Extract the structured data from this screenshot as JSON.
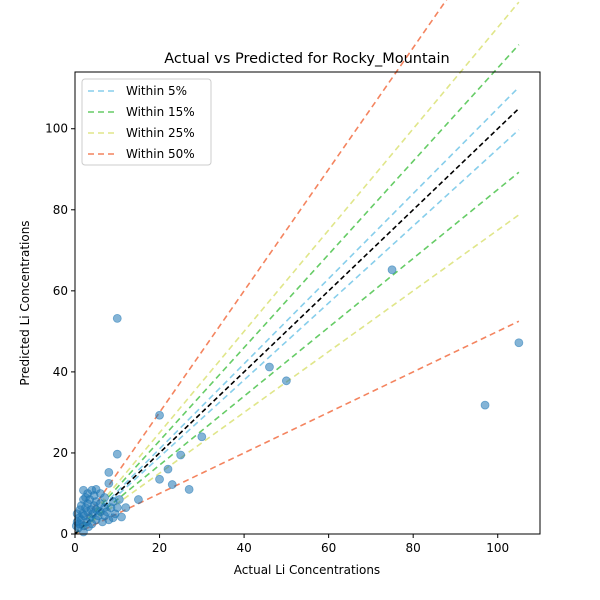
{
  "chart_data": {
    "type": "scatter",
    "title": "Actual vs Predicted for Rocky_Mountain",
    "xlabel": "Actual Li Concentrations",
    "ylabel": "Predicted Li Concentrations",
    "xlim": [
      0,
      110
    ],
    "ylim": [
      0,
      114
    ],
    "x_ticks": [
      0,
      20,
      40,
      60,
      80,
      100
    ],
    "y_ticks": [
      0,
      20,
      40,
      60,
      80,
      100
    ],
    "grid": false,
    "legend_position": "upper-left",
    "points_color": "#1f77b4",
    "identity_line_color": "#000000",
    "bands": [
      {
        "name": "Within 5%",
        "pct": 5,
        "color": "#87ceeb"
      },
      {
        "name": "Within 15%",
        "pct": 15,
        "color": "#66cc66"
      },
      {
        "name": "Within 25%",
        "pct": 25,
        "color": "#e0e68a"
      },
      {
        "name": "Within 50%",
        "pct": 50,
        "color": "#f4845f"
      }
    ],
    "line_x_range": [
      0,
      105
    ],
    "points": [
      [
        0.3,
        2.0
      ],
      [
        0.5,
        3.0
      ],
      [
        0.5,
        5.0
      ],
      [
        0.8,
        1.5
      ],
      [
        1.0,
        2.5
      ],
      [
        1.0,
        4.0
      ],
      [
        1.2,
        6.0
      ],
      [
        1.5,
        3.5
      ],
      [
        1.5,
        7.0
      ],
      [
        1.8,
        5.0
      ],
      [
        2.0,
        0.5
      ],
      [
        2.0,
        2.0
      ],
      [
        2.0,
        8.5
      ],
      [
        2.0,
        10.8
      ],
      [
        2.2,
        4.5
      ],
      [
        2.5,
        6.5
      ],
      [
        2.5,
        9.0
      ],
      [
        2.8,
        3.0
      ],
      [
        3.0,
        5.5
      ],
      [
        3.0,
        7.5
      ],
      [
        3.0,
        10.0
      ],
      [
        3.2,
        1.8
      ],
      [
        3.5,
        4.0
      ],
      [
        3.5,
        8.5
      ],
      [
        3.8,
        6.0
      ],
      [
        4.0,
        2.5
      ],
      [
        4.0,
        10.8
      ],
      [
        4.2,
        5.0
      ],
      [
        4.5,
        7.0
      ],
      [
        4.5,
        9.5
      ],
      [
        5.0,
        3.5
      ],
      [
        5.0,
        6.0
      ],
      [
        5.0,
        8.0
      ],
      [
        5.0,
        11.0
      ],
      [
        5.5,
        4.5
      ],
      [
        6.0,
        5.5
      ],
      [
        6.0,
        7.5
      ],
      [
        6.0,
        10.0
      ],
      [
        6.5,
        3.0
      ],
      [
        7.0,
        4.5
      ],
      [
        7.0,
        6.5
      ],
      [
        7.0,
        9.0
      ],
      [
        7.5,
        5.5
      ],
      [
        8.0,
        3.5
      ],
      [
        8.0,
        12.5
      ],
      [
        8.0,
        15.2
      ],
      [
        8.5,
        6.5
      ],
      [
        9.0,
        4.0
      ],
      [
        9.0,
        8.0
      ],
      [
        9.5,
        5.0
      ],
      [
        10.0,
        6.5
      ],
      [
        10.0,
        19.7
      ],
      [
        10.0,
        53.2
      ],
      [
        10.5,
        8.5
      ],
      [
        11.0,
        4.2
      ],
      [
        12.0,
        6.5
      ],
      [
        15.0,
        8.5
      ],
      [
        20.0,
        13.5
      ],
      [
        20.0,
        29.3
      ],
      [
        22.0,
        16.0
      ],
      [
        23.0,
        12.2
      ],
      [
        25.0,
        19.5
      ],
      [
        27.0,
        11.0
      ],
      [
        30.0,
        24.0
      ],
      [
        46.0,
        41.2
      ],
      [
        50.0,
        37.8
      ],
      [
        75.0,
        65.2
      ],
      [
        97.0,
        31.8
      ],
      [
        105.0,
        47.2
      ]
    ]
  }
}
